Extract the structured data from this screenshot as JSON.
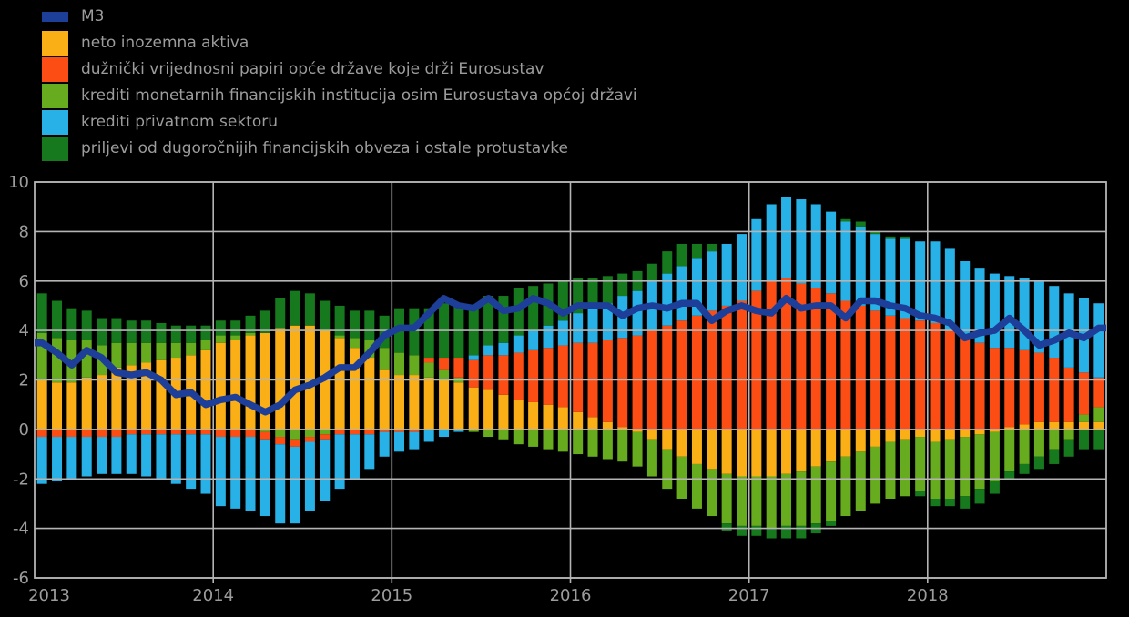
{
  "page": {
    "background_color": "#000000",
    "text_color": "#9c9c9c",
    "grid_color": "#b4b4b4"
  },
  "legend": {
    "items": [
      {
        "label": "M3",
        "color": "#1d3e99",
        "swatch": "line"
      },
      {
        "label": "neto inozemna aktiva",
        "color": "#fbaf17",
        "swatch": "square"
      },
      {
        "label": "dužnički vrijednosni papiri opće države koje drži Eurosustav",
        "color": "#fc4d14",
        "swatch": "square"
      },
      {
        "label": "krediti monetarnih financijskih institucija osim Eurosustava općoj državi",
        "color": "#67ab1e",
        "swatch": "square"
      },
      {
        "label": "krediti privatnom sektoru",
        "color": "#27b1e6",
        "swatch": "square"
      },
      {
        "label": "priljevi od dugoročnijih financijskih obveza i ostale protustavke",
        "color": "#17791d",
        "swatch": "square"
      }
    ]
  },
  "chart_data": {
    "type": "bar",
    "stacked": true,
    "frequency": "monthly",
    "start_month": "2013-01",
    "end_month": "2018-12",
    "ylim": [
      -6,
      10
    ],
    "yticks": [
      10,
      8,
      6,
      4,
      2,
      0,
      -2,
      -4,
      -6
    ],
    "xticklabels": [
      "2013",
      "2014",
      "2015",
      "2016",
      "2017",
      "2018"
    ],
    "grid": true,
    "legend_position": "top-left",
    "series": [
      {
        "name": "neto inozemna aktiva",
        "color": "#fbaf17",
        "values": [
          2.0,
          1.9,
          1.9,
          2.1,
          2.2,
          2.5,
          2.6,
          2.7,
          2.8,
          2.9,
          3.0,
          3.2,
          3.5,
          3.6,
          3.8,
          3.9,
          4.1,
          4.2,
          4.2,
          4.0,
          3.7,
          3.3,
          2.9,
          2.4,
          2.2,
          2.2,
          2.1,
          2.0,
          1.9,
          1.7,
          1.6,
          1.4,
          1.2,
          1.1,
          1.0,
          0.9,
          0.7,
          0.5,
          0.3,
          0.1,
          -0.1,
          -0.4,
          -0.8,
          -1.1,
          -1.4,
          -1.6,
          -1.8,
          -1.9,
          -1.9,
          -1.9,
          -1.8,
          -1.7,
          -1.5,
          -1.3,
          -1.1,
          -0.9,
          -0.7,
          -0.5,
          -0.4,
          -0.3,
          -0.5,
          -0.4,
          -0.3,
          -0.2,
          -0.1,
          0.1,
          0.2,
          0.3,
          0.3,
          0.3,
          0.3,
          0.3
        ]
      },
      {
        "name": "krediti monetarnih financijskih institucija osim Eurosustava općoj državi",
        "color": "#67ab1e",
        "values": [
          1.9,
          1.8,
          1.7,
          1.5,
          1.2,
          1.0,
          0.9,
          0.8,
          0.7,
          0.6,
          0.5,
          0.4,
          0.3,
          0.2,
          0.1,
          -0.1,
          -0.3,
          -0.4,
          -0.3,
          -0.2,
          0.1,
          0.4,
          0.7,
          0.9,
          0.9,
          0.8,
          0.6,
          0.4,
          0.2,
          -0.1,
          -0.3,
          -0.4,
          -0.6,
          -0.7,
          -0.8,
          -0.9,
          -1.0,
          -1.1,
          -1.2,
          -1.3,
          -1.4,
          -1.5,
          -1.6,
          -1.7,
          -1.8,
          -1.9,
          -2.0,
          -2.0,
          -2.0,
          -2.1,
          -2.1,
          -2.2,
          -2.3,
          -2.4,
          -2.4,
          -2.4,
          -2.3,
          -2.3,
          -2.3,
          -2.2,
          -2.3,
          -2.4,
          -2.4,
          -2.2,
          -2.0,
          -1.7,
          -1.4,
          -1.1,
          -0.8,
          -0.4,
          0.3,
          0.6
        ]
      },
      {
        "name": "dužnički vrijednosni papiri opće države koje drži Eurosustav",
        "color": "#fc4d14",
        "values": [
          -0.3,
          -0.3,
          -0.3,
          -0.3,
          -0.3,
          -0.3,
          -0.2,
          -0.2,
          -0.2,
          -0.2,
          -0.2,
          -0.2,
          -0.3,
          -0.3,
          -0.3,
          -0.3,
          -0.3,
          -0.3,
          -0.2,
          -0.2,
          -0.2,
          -0.2,
          -0.2,
          -0.1,
          -0.1,
          -0.1,
          0.2,
          0.5,
          0.8,
          1.1,
          1.4,
          1.6,
          1.9,
          2.1,
          2.3,
          2.5,
          2.8,
          3.0,
          3.3,
          3.6,
          3.8,
          4.0,
          4.2,
          4.4,
          4.6,
          4.8,
          5.0,
          5.2,
          5.6,
          6.0,
          6.1,
          5.9,
          5.7,
          5.5,
          5.2,
          5.0,
          4.8,
          4.6,
          4.5,
          4.4,
          4.3,
          4.0,
          3.7,
          3.5,
          3.3,
          3.2,
          3.0,
          2.8,
          2.6,
          2.2,
          1.7,
          1.2
        ]
      },
      {
        "name": "krediti privatnom sektoru",
        "color": "#27b1e6",
        "values": [
          -1.9,
          -1.8,
          -1.7,
          -1.6,
          -1.5,
          -1.5,
          -1.6,
          -1.7,
          -1.8,
          -2.0,
          -2.2,
          -2.4,
          -2.8,
          -2.9,
          -3.0,
          -3.1,
          -3.2,
          -3.1,
          -2.8,
          -2.5,
          -2.2,
          -1.8,
          -1.4,
          -1.0,
          -0.8,
          -0.7,
          -0.5,
          -0.3,
          -0.1,
          0.2,
          0.4,
          0.5,
          0.7,
          0.8,
          0.9,
          1.0,
          1.2,
          1.4,
          1.5,
          1.7,
          1.8,
          2.0,
          2.1,
          2.2,
          2.3,
          2.4,
          2.5,
          2.7,
          2.9,
          3.1,
          3.3,
          3.4,
          3.4,
          3.3,
          3.2,
          3.2,
          3.1,
          3.1,
          3.2,
          3.2,
          3.3,
          3.3,
          3.1,
          3.0,
          3.0,
          2.9,
          2.9,
          2.9,
          2.9,
          3.0,
          3.0,
          3.0
        ]
      },
      {
        "name": "priljevi od dugoročnijih financijskih obveza i ostale protustavke",
        "color": "#17791d",
        "values": [
          1.6,
          1.5,
          1.3,
          1.2,
          1.1,
          1.0,
          0.9,
          0.9,
          0.8,
          0.7,
          0.7,
          0.6,
          0.6,
          0.6,
          0.7,
          0.9,
          1.2,
          1.4,
          1.3,
          1.2,
          1.2,
          1.1,
          1.2,
          1.3,
          1.8,
          1.9,
          2.0,
          2.2,
          2.1,
          2.0,
          2.0,
          1.9,
          1.9,
          1.8,
          1.7,
          1.6,
          1.4,
          1.2,
          1.1,
          0.9,
          0.8,
          0.7,
          0.9,
          0.9,
          0.6,
          0.3,
          -0.3,
          -0.4,
          -0.4,
          -0.4,
          -0.5,
          -0.5,
          -0.4,
          -0.2,
          0.1,
          0.2,
          0.1,
          0.1,
          0.1,
          -0.2,
          -0.3,
          -0.3,
          -0.5,
          -0.6,
          -0.5,
          -0.3,
          -0.4,
          -0.5,
          -0.6,
          -0.7,
          -0.8,
          -0.8
        ]
      }
    ],
    "line_series": [
      {
        "name": "M3",
        "color": "#1d3e99",
        "values": [
          3.5,
          3.1,
          2.6,
          3.2,
          2.9,
          2.3,
          2.2,
          2.3,
          2.0,
          1.4,
          1.5,
          1.0,
          1.2,
          1.3,
          1.0,
          0.7,
          1.0,
          1.6,
          1.8,
          2.1,
          2.5,
          2.5,
          3.1,
          3.8,
          4.1,
          4.1,
          4.7,
          5.3,
          5.0,
          4.9,
          5.3,
          4.8,
          4.9,
          5.3,
          5.1,
          4.7,
          5.0,
          5.0,
          5.0,
          4.6,
          4.9,
          5.0,
          4.9,
          5.1,
          5.1,
          4.4,
          4.8,
          5.0,
          4.8,
          4.7,
          5.3,
          4.9,
          5.0,
          5.0,
          4.5,
          5.2,
          5.2,
          5.0,
          4.9,
          4.6,
          4.5,
          4.3,
          3.7,
          3.9,
          4.0,
          4.5,
          4.0,
          3.4,
          3.6,
          3.9,
          3.7,
          4.1
        ]
      }
    ]
  }
}
